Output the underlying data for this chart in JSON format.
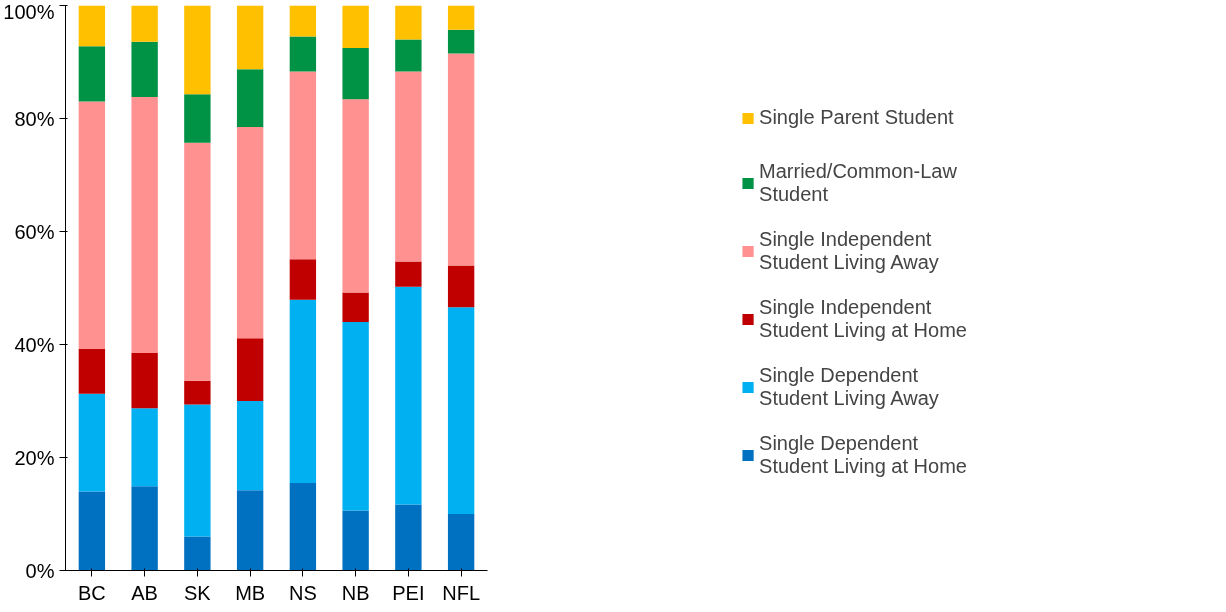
{
  "chart_data": {
    "type": "bar",
    "stacked": true,
    "categories": [
      "BC",
      "AB",
      "SK",
      "MB",
      "NS",
      "NB",
      "PEI",
      "NFL"
    ],
    "series": [
      {
        "name": "Single Dependent Student Living at Home",
        "color": "#0070c0",
        "values": [
          14.0,
          14.9,
          6.0,
          14.2,
          15.5,
          10.6,
          11.7,
          10.0
        ]
      },
      {
        "name": "Single Dependent Student Living Away",
        "color": "#00b0f0",
        "values": [
          17.3,
          13.8,
          23.4,
          15.8,
          32.4,
          33.4,
          38.5,
          36.6
        ]
      },
      {
        "name": "Single Independent Student Living at Home",
        "color": "#c00000",
        "values": [
          7.9,
          9.8,
          4.2,
          11.1,
          7.2,
          5.2,
          4.5,
          7.4
        ]
      },
      {
        "name": "Single Independent Student Living Away",
        "color": "#ff9191",
        "values": [
          43.8,
          45.3,
          42.1,
          37.4,
          33.2,
          34.2,
          33.6,
          37.5
        ]
      },
      {
        "name": "Married/Common-Law Student",
        "color": "#009245",
        "values": [
          9.8,
          9.8,
          8.6,
          10.2,
          6.2,
          9.1,
          5.7,
          4.2
        ]
      },
      {
        "name": "Single Parent Student",
        "color": "#ffc000",
        "values": [
          7.2,
          6.4,
          15.7,
          11.3,
          5.5,
          7.5,
          6.0,
          4.3
        ]
      }
    ],
    "ylim": [
      0,
      100
    ],
    "yticks": [
      {
        "value": 0,
        "label": "0%"
      },
      {
        "value": 20,
        "label": "20%"
      },
      {
        "value": 40,
        "label": "40%"
      },
      {
        "value": 60,
        "label": "60%"
      },
      {
        "value": 80,
        "label": "80%"
      },
      {
        "value": 100,
        "label": "100%"
      }
    ],
    "grid": false,
    "legend": "right"
  }
}
